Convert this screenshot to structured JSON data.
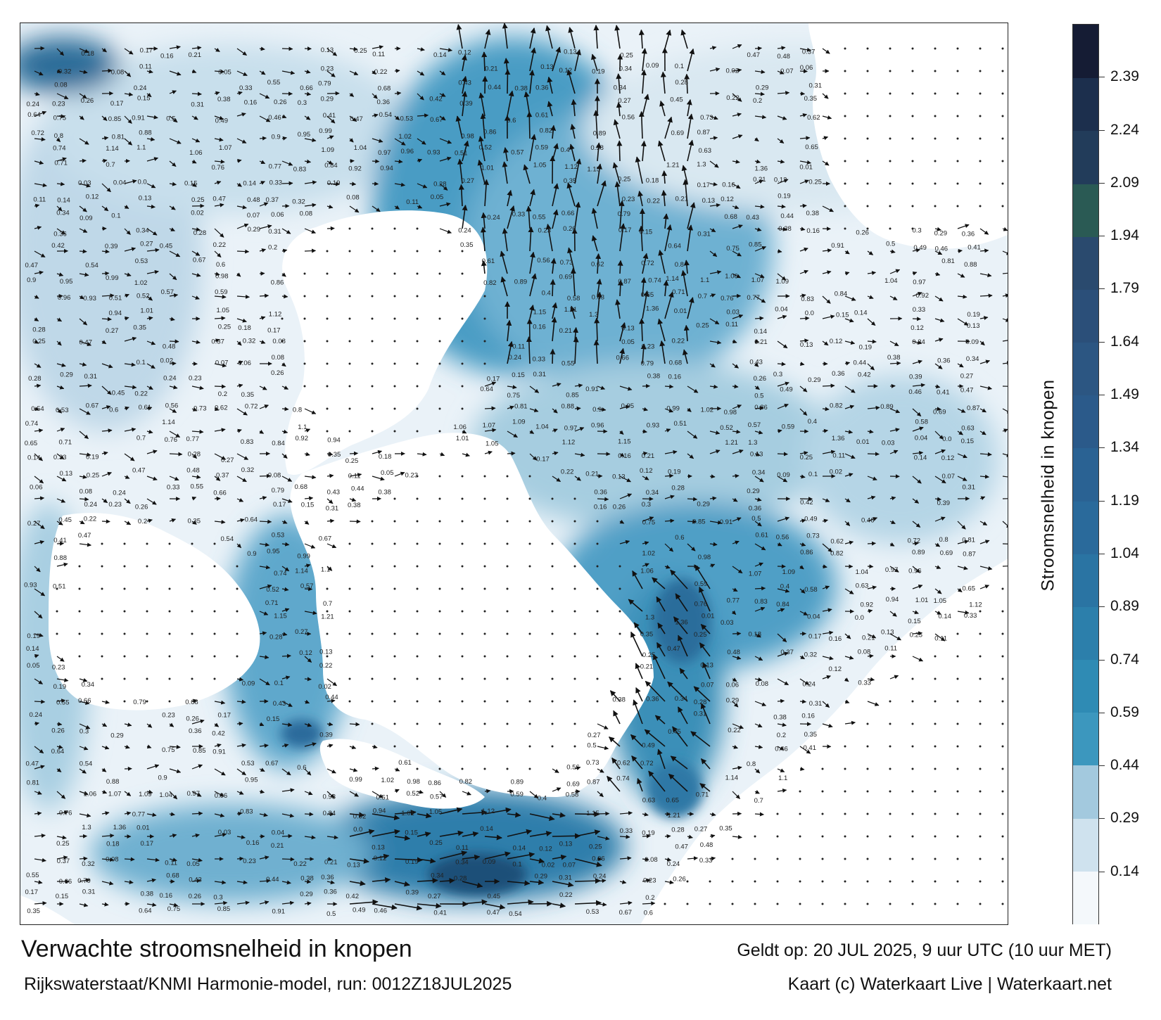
{
  "title": "Verwachte stroomsnelheid in knopen",
  "subtitle": "Rijkswaterstaat/KNMI Harmonie-model, run: 0012Z18JUL2025",
  "valid_time": "Geldt op: 20 JUL 2025, 9 uur UTC (10 uur MET)",
  "credit": "Kaart (c) Waterkaart Live | Waterkaart.net",
  "legend": {
    "label": "Stroomsnelheid in knopen",
    "ticks": [
      "0.14",
      "0.29",
      "0.44",
      "0.59",
      "0.74",
      "0.89",
      "1.04",
      "1.19",
      "1.34",
      "1.49",
      "1.64",
      "1.79",
      "1.94",
      "2.09",
      "2.24",
      "2.39"
    ],
    "colors": [
      "#f4f8fb",
      "#cfe2ee",
      "#a3c9de",
      "#3c97be",
      "#2f8bb4",
      "#2c7fab",
      "#2a74a3",
      "#2a6a9b",
      "#2a6293",
      "#2b5a8a",
      "#2c5682",
      "#2b4f79",
      "#2a4a6e",
      "#2a5a54",
      "#223c5a",
      "#1c2f4d",
      "#151c34"
    ]
  },
  "map": {
    "sea_colors": {
      "light": "#e4eef5",
      "mid": "#9cc6dc",
      "strong": "#3b8fb8",
      "deep": "#25648f"
    },
    "land_color": "#ffffff",
    "speed_labels": [
      "0.18",
      "0.17",
      "0.16",
      "0.21",
      "0.13",
      "0.25",
      "0.11",
      "0.14",
      "0.12",
      "0.13",
      "0.25",
      "0.47",
      "0.48",
      "0.37",
      "0.32",
      "0.08",
      "0.11",
      "0.05",
      "0.23",
      "0.22",
      "0.21",
      "0.13",
      "0.12",
      "0.19",
      "0.34",
      "0.09",
      "0.1",
      "0.02",
      "0.07",
      "0.06",
      "0.08",
      "0.24",
      "0.33",
      "0.55",
      "0.66",
      "0.79",
      "0.68",
      "0.43",
      "0.44",
      "0.38",
      "0.36",
      "0.34",
      "0.28",
      "0.29",
      "0.31",
      "0.24",
      "0.23",
      "0.26",
      "0.17",
      "0.15",
      "0.31",
      "0.38",
      "0.16",
      "0.26",
      "0.3",
      "0.29",
      "0.36",
      "0.42",
      "0.39",
      "0.27",
      "0.45",
      "0.22",
      "0.2",
      "0.35",
      "0.64",
      "0.75",
      "0.85",
      "0.91",
      "0.5",
      "0.49",
      "0.46",
      "0.41",
      "0.47",
      "0.54",
      "0.53",
      "0.67",
      "0.6",
      "0.61",
      "0.56",
      "0.73",
      "0.62",
      "0.72",
      "0.8",
      "0.81",
      "0.88",
      "0.9",
      "0.95",
      "0.99",
      "1.02",
      "0.98",
      "0.86",
      "0.82",
      "0.89",
      "0.69",
      "0.87",
      "0.74",
      "1.14",
      "1.1",
      "1.06",
      "1.07",
      "1.09",
      "1.04",
      "0.97",
      "0.96",
      "0.93",
      "0.51",
      "0.52",
      "0.57",
      "0.59",
      "0.4",
      "0.58",
      "0.63",
      "0.65",
      "0.71",
      "0.7",
      "0.76",
      "0.77",
      "0.83",
      "0.84",
      "0.92",
      "0.94",
      "1.01",
      "1.05",
      "1.12",
      "1.15",
      "1.21",
      "1.3",
      "1.36",
      "0.01",
      "0.03",
      "0.04",
      "0.0",
      "0.15",
      "0.14",
      "0.33",
      "0.19",
      "0.28",
      "0.27",
      "0.35",
      "0.25"
    ]
  }
}
